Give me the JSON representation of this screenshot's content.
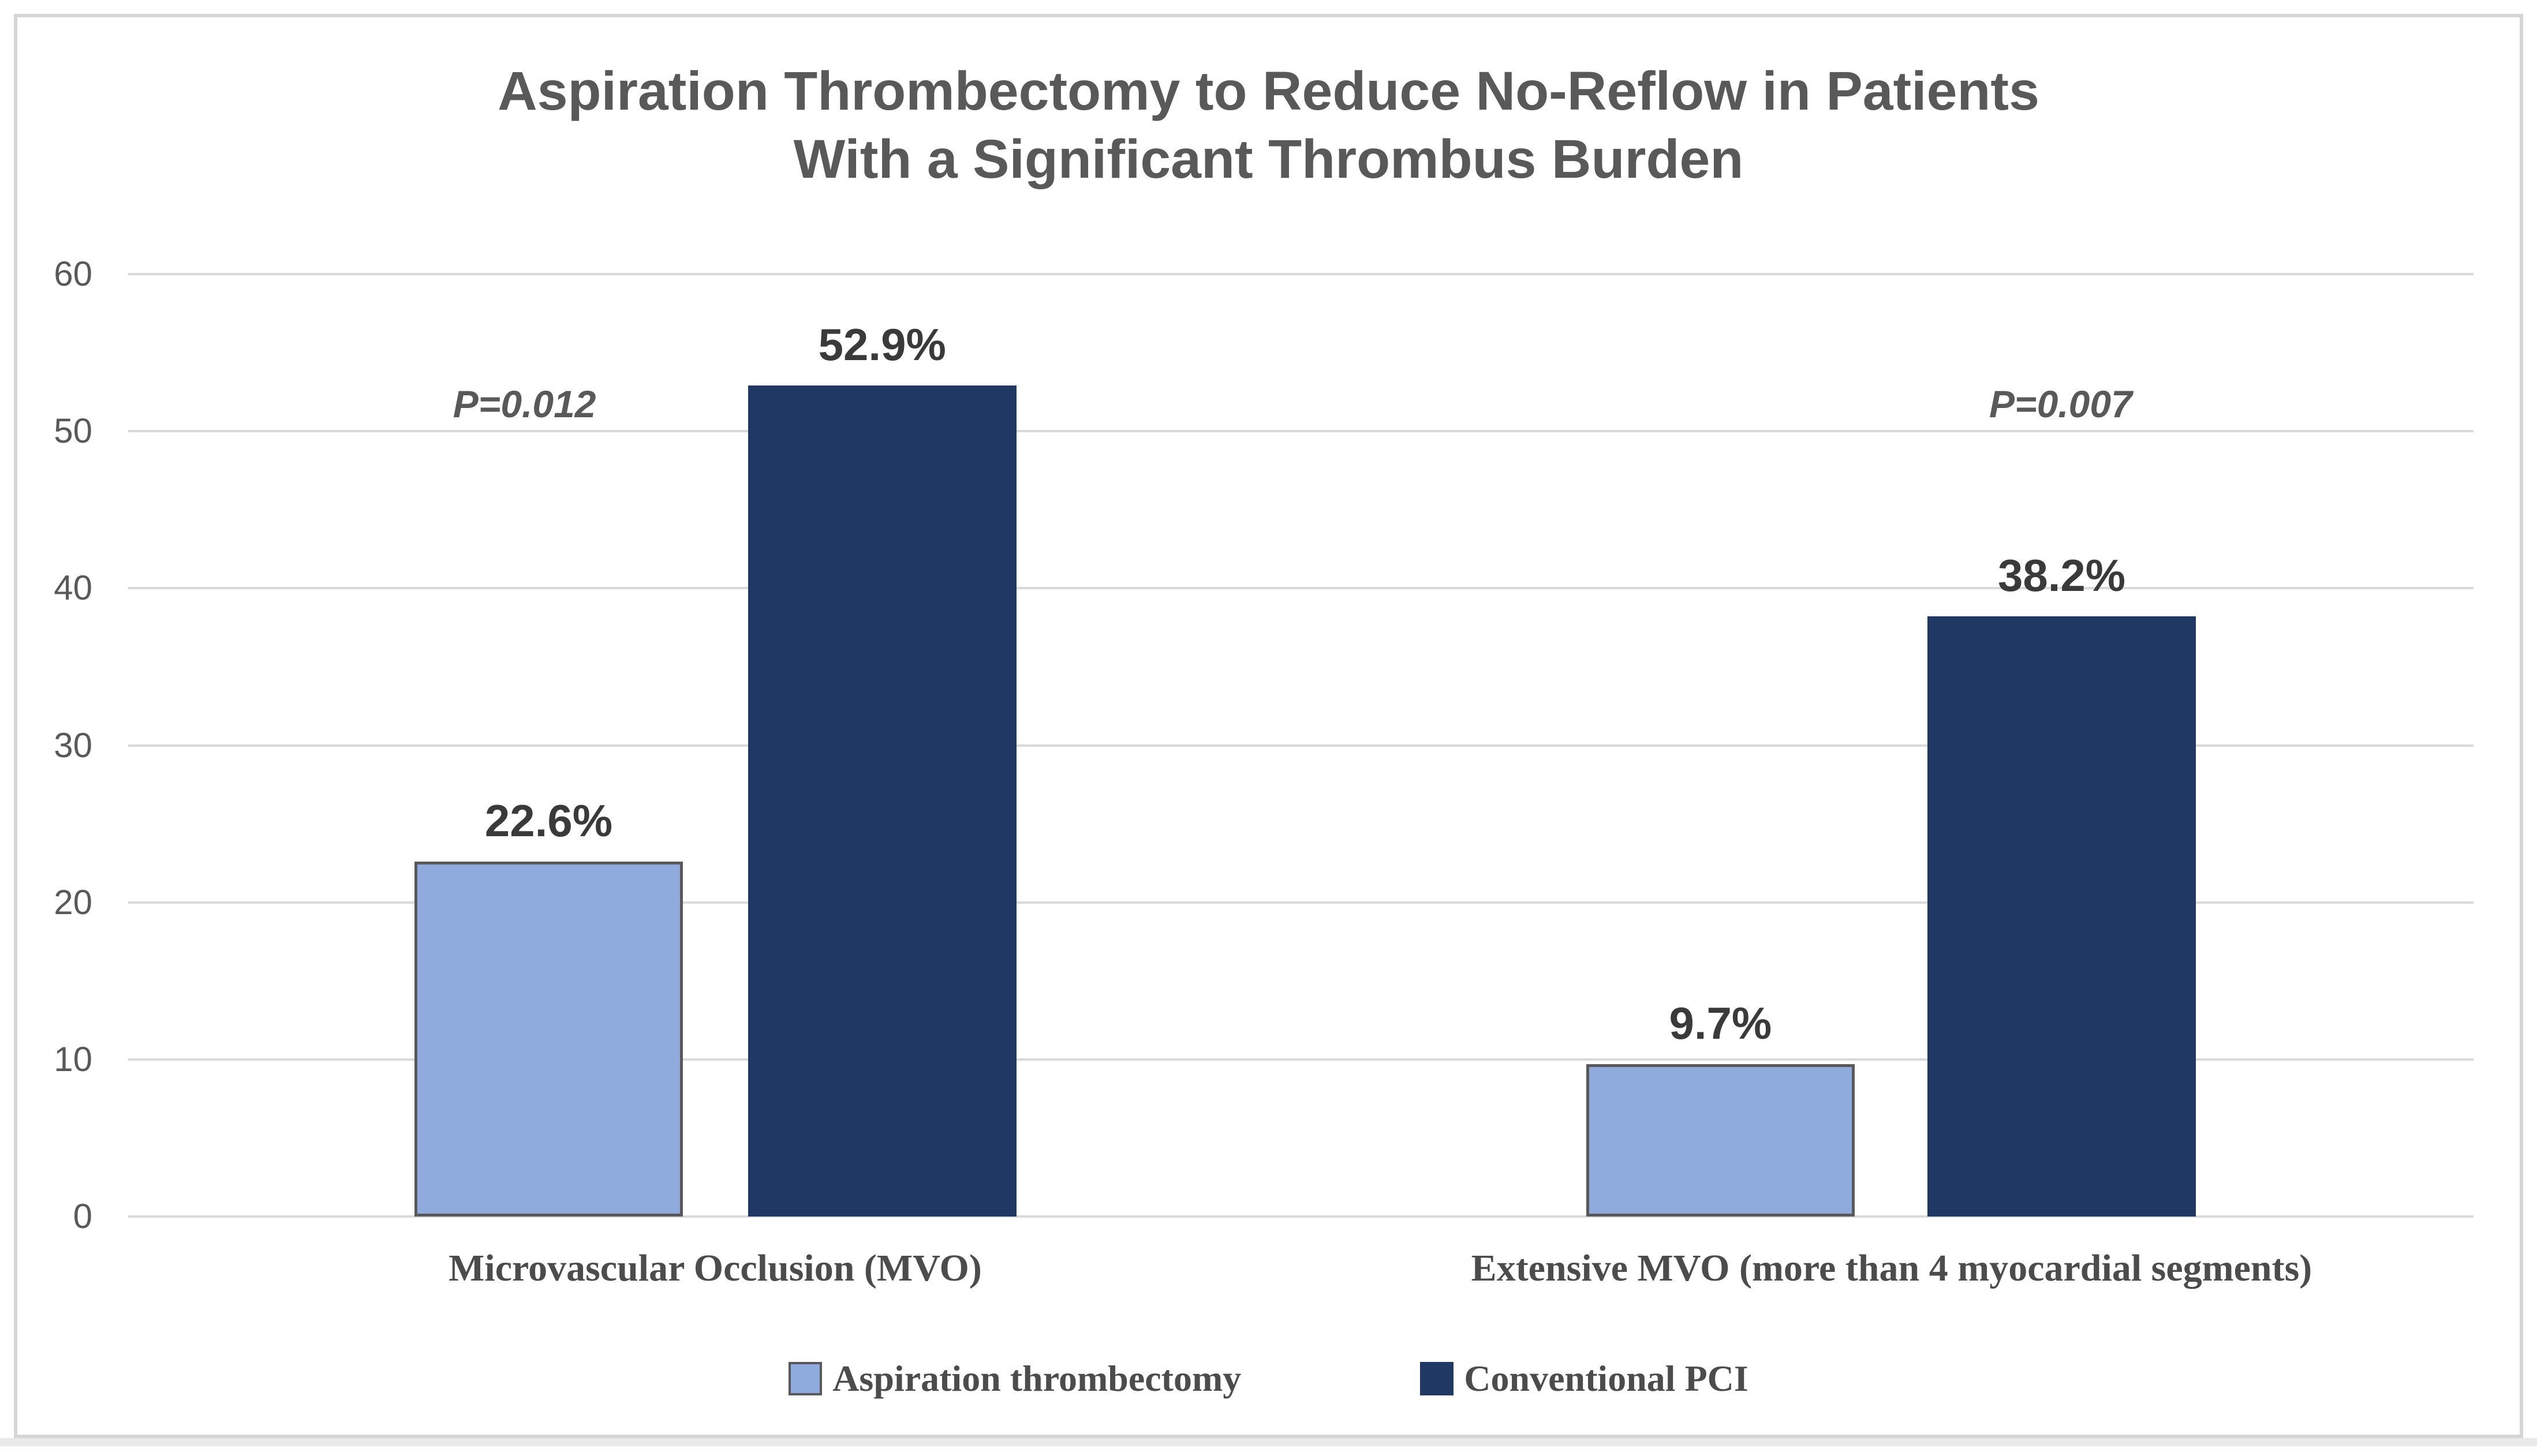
{
  "page": {
    "background": "#ffffff",
    "frame_border_color": "#d6d6d6"
  },
  "chart_data": {
    "type": "bar",
    "title": "Aspiration Thrombectomy to Reduce No-Reflow in Patients With a Significant Thrombus Burden",
    "title_lines": [
      "Aspiration Thrombectomy to Reduce No-Reflow in Patients",
      "With a Significant Thrombus Burden"
    ],
    "categories": [
      "Microvascular Occlusion (MVO)",
      "Extensive MVO (more than 4 myocardial segments)"
    ],
    "series": [
      {
        "name": "Aspiration thrombectomy",
        "color": "#8FAADC",
        "border_color": "#595959",
        "values": [
          22.6,
          9.7
        ],
        "data_labels": [
          "22.6%",
          "9.7%"
        ]
      },
      {
        "name": "Conventional PCI",
        "color": "#1F3864",
        "border_color": null,
        "values": [
          52.9,
          38.2
        ],
        "data_labels": [
          "52.9%",
          "38.2%"
        ]
      }
    ],
    "p_values": [
      "P=0.012",
      "P=0.007"
    ],
    "y_axis": {
      "min": 0,
      "max": 60,
      "step": 10,
      "tick_labels": [
        "60",
        "50",
        "40",
        "30",
        "20",
        "10",
        "0"
      ],
      "gridline_color": "#d9d9d9"
    },
    "grid": true,
    "legend_position": "bottom",
    "colors": {
      "title_text": "#595959",
      "axis_text": "#595959",
      "value_label_text": "#3a3a3a",
      "category_text": "#4c4c4c"
    }
  }
}
